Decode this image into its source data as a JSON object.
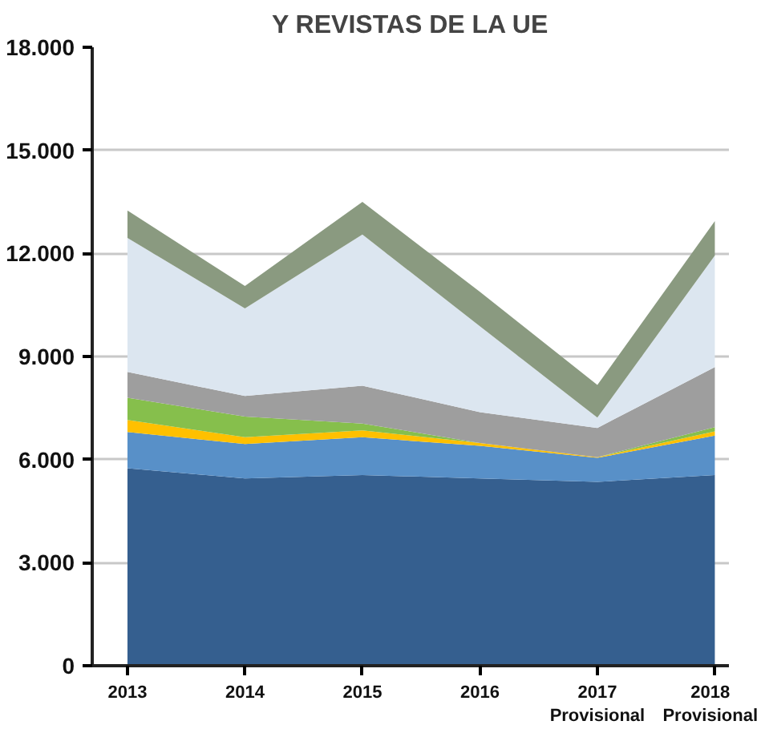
{
  "chart_data": {
    "type": "area",
    "stacked": true,
    "title": "Y REVISTAS DE LA UE",
    "categories": [
      "2013",
      "2014",
      "2015",
      "2016",
      "2017\nProvisional",
      "2018\nProvisional"
    ],
    "series": [
      {
        "color": "#355f8f",
        "values": [
          5750,
          5450,
          5550,
          5450,
          5350,
          5550
        ]
      },
      {
        "color": "#5890c8",
        "values": [
          1050,
          1000,
          1100,
          950,
          700,
          1150
        ]
      },
      {
        "color": "#ffc000",
        "values": [
          350,
          200,
          200,
          80,
          20,
          120
        ]
      },
      {
        "color": "#86bf4c",
        "values": [
          650,
          600,
          200,
          0,
          0,
          120
        ]
      },
      {
        "color": "#9e9e9e",
        "values": [
          750,
          600,
          1100,
          900,
          850,
          1750
        ]
      },
      {
        "color": "#dce6f0",
        "values": [
          3900,
          2550,
          4400,
          2500,
          300,
          3250
        ]
      },
      {
        "color": "#8a9a80",
        "values": [
          800,
          650,
          950,
          1000,
          950,
          1000
        ]
      }
    ],
    "ylim": [
      0,
      18000
    ],
    "yticks": [
      {
        "value": 0,
        "label": "0"
      },
      {
        "value": 3000,
        "label": "3.000"
      },
      {
        "value": 6000,
        "label": "6.000"
      },
      {
        "value": 9000,
        "label": "9.000"
      },
      {
        "value": 12000,
        "label": "12.000"
      },
      {
        "value": 15000,
        "label": "15.000"
      },
      {
        "value": 18000,
        "label": "18.000"
      }
    ],
    "grid": "y"
  }
}
